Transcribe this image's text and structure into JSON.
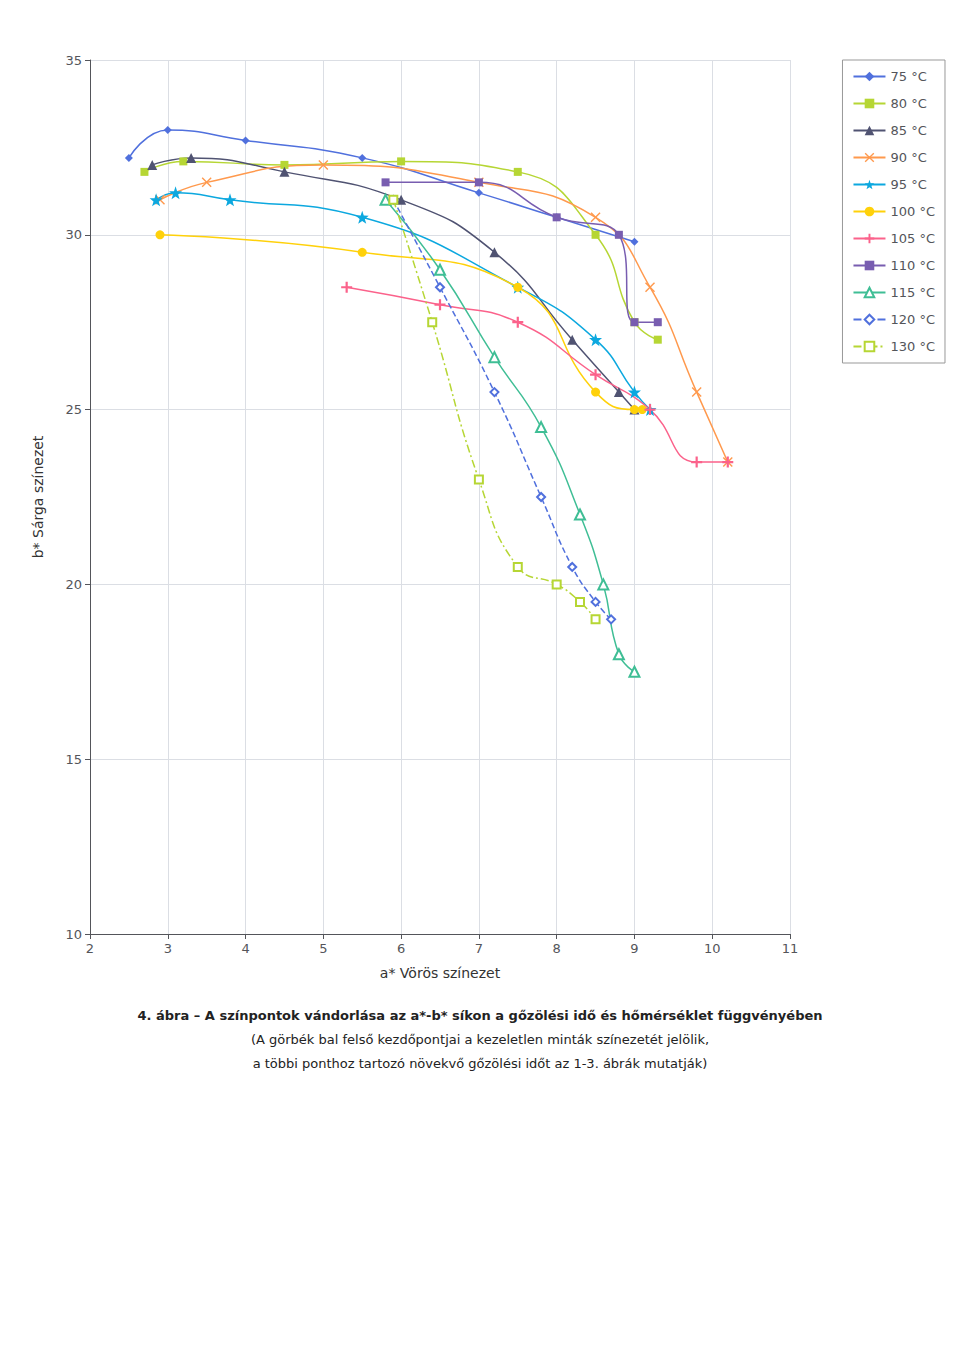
{
  "chart_data": {
    "type": "line",
    "xlabel": "a* Vörös színezet",
    "ylabel": "b* Sárga színezet",
    "annotations": [
      "4. ábra – A színpontok vándorlása az a*-b* síkon a gőzölési idő és hőmérséklet függvényében",
      "(A görbék bal felső kezdőpontjai a kezeletlen minták színezetét jelölik,",
      "a többi ponthoz tartozó növekvő gőzölési időt az 1-3. ábrák mutatják)"
    ],
    "xlim": [
      2,
      11
    ],
    "ylim": [
      10,
      35
    ],
    "xticks": [
      2,
      3,
      4,
      5,
      6,
      7,
      8,
      9,
      10,
      11
    ],
    "yticks": [
      10,
      15,
      20,
      25,
      30,
      35
    ],
    "grid": true,
    "legend": "right",
    "series": [
      {
        "name": "75 °C",
        "marker": "diamond",
        "line_style": "solid",
        "x": [
          2.5,
          3.0,
          4.0,
          5.5,
          7.0,
          8.0,
          9.0
        ],
        "values": [
          32.2,
          33.0,
          32.7,
          32.2,
          31.2,
          30.5,
          29.8
        ]
      },
      {
        "name": "80 °C",
        "marker": "square",
        "line_style": "solid",
        "x": [
          2.7,
          3.2,
          4.5,
          6.0,
          7.5,
          8.5,
          9.0,
          9.3
        ],
        "values": [
          31.8,
          32.1,
          32.0,
          32.1,
          31.8,
          30.0,
          27.5,
          27.0
        ]
      },
      {
        "name": "85 °C",
        "marker": "triangle",
        "line_style": "solid",
        "x": [
          2.8,
          3.3,
          4.5,
          6.0,
          7.2,
          8.2,
          8.8,
          9.0
        ],
        "values": [
          32.0,
          32.2,
          31.8,
          31.0,
          29.5,
          27.0,
          25.5,
          25.0
        ]
      },
      {
        "name": "90 °C",
        "marker": "x",
        "line_style": "solid",
        "x": [
          2.9,
          3.5,
          5.0,
          7.0,
          8.5,
          9.2,
          9.8,
          10.2
        ],
        "values": [
          31.0,
          31.5,
          32.0,
          31.5,
          30.5,
          28.5,
          25.5,
          23.5
        ]
      },
      {
        "name": "95 °C",
        "marker": "star",
        "line_style": "solid",
        "x": [
          2.85,
          3.1,
          3.8,
          5.5,
          7.5,
          8.5,
          9.0,
          9.2
        ],
        "values": [
          31.0,
          31.2,
          31.0,
          30.5,
          28.5,
          27.0,
          25.5,
          25.0
        ]
      },
      {
        "name": "100 °C",
        "marker": "circle",
        "line_style": "solid",
        "x": [
          2.9,
          5.5,
          7.5,
          8.5,
          9.0,
          9.1
        ],
        "values": [
          30.0,
          29.5,
          28.5,
          25.5,
          25.0,
          25.0
        ]
      },
      {
        "name": "105 °C",
        "marker": "plus",
        "line_style": "solid",
        "x": [
          5.3,
          6.5,
          7.5,
          8.5,
          9.2,
          9.8,
          10.2
        ],
        "values": [
          28.5,
          28.0,
          27.5,
          26.0,
          25.0,
          23.5,
          23.5
        ]
      },
      {
        "name": "110 °C",
        "marker": "square",
        "line_style": "solid",
        "x": [
          5.8,
          7.0,
          8.0,
          8.8,
          9.0,
          9.3
        ],
        "values": [
          31.5,
          31.5,
          30.5,
          30.0,
          27.5,
          27.5
        ]
      },
      {
        "name": "115 °C",
        "marker": "open triangle",
        "line_style": "solid",
        "x": [
          5.8,
          6.5,
          7.2,
          7.8,
          8.3,
          8.6,
          8.8,
          9.0
        ],
        "values": [
          31.0,
          29.0,
          26.5,
          24.5,
          22.0,
          20.0,
          18.0,
          17.5
        ]
      },
      {
        "name": "120 °C",
        "marker": "open diamond",
        "line_style": "dashed",
        "x": [
          5.9,
          6.5,
          7.2,
          7.8,
          8.2,
          8.5,
          8.7
        ],
        "values": [
          31.0,
          28.5,
          25.5,
          22.5,
          20.5,
          19.5,
          19.0
        ]
      },
      {
        "name": "130 °C",
        "marker": "open square",
        "line_style": "dashdot",
        "x": [
          5.9,
          6.4,
          7.0,
          7.5,
          8.0,
          8.3,
          8.5
        ],
        "values": [
          31.0,
          27.5,
          23.0,
          20.5,
          20.0,
          19.5,
          19.0
        ]
      }
    ]
  }
}
